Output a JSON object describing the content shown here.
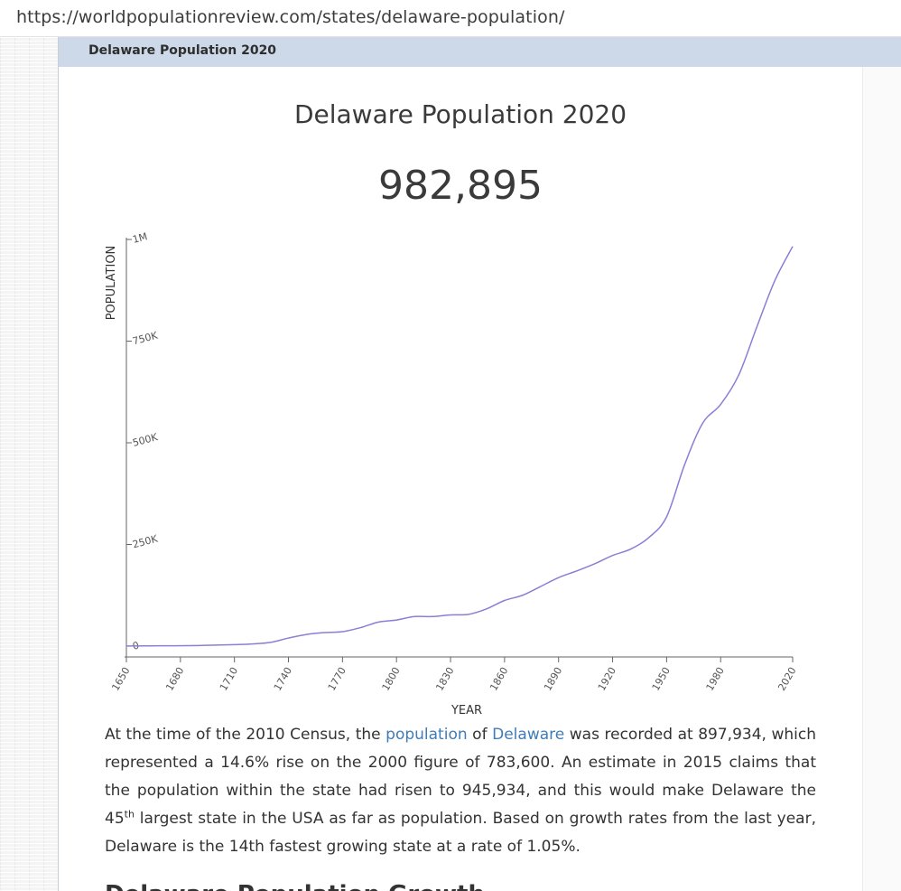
{
  "browser": {
    "url": "https://worldpopulationreview.com/states/delaware-population/"
  },
  "breadcrumb": {
    "label": "Delaware Population 2020"
  },
  "page": {
    "title": "Delaware Population 2020",
    "population": "982,895"
  },
  "chart_data": {
    "type": "line",
    "title": "",
    "xlabel": "YEAR",
    "ylabel": "POPULATION",
    "xlim": [
      1650,
      2020
    ],
    "ylim": [
      0,
      1000000
    ],
    "x_ticks": [
      "1650",
      "1680",
      "1710",
      "1740",
      "1770",
      "1800",
      "1830",
      "1860",
      "1890",
      "1920",
      "1950",
      "1980",
      "2020"
    ],
    "x_tick_values": [
      1650,
      1680,
      1710,
      1740,
      1770,
      1800,
      1830,
      1860,
      1890,
      1920,
      1950,
      1980,
      2020
    ],
    "y_ticks": [
      "0",
      "250K",
      "500K",
      "750K",
      "1M"
    ],
    "y_tick_values": [
      0,
      250000,
      500000,
      750000,
      1000000
    ],
    "grid": false,
    "color": "#8a7fd4",
    "series": [
      {
        "x": [
          1650,
          1670,
          1690,
          1700,
          1710,
          1720,
          1730,
          1740,
          1750,
          1760,
          1770,
          1780,
          1790,
          1800,
          1810,
          1820,
          1830,
          1840,
          1850,
          1860,
          1870,
          1880,
          1890,
          1900,
          1910,
          1920,
          1930,
          1940,
          1950,
          1960,
          1970,
          1980,
          1990,
          2000,
          2010,
          2020
        ],
        "y": [
          185,
          700,
          1500,
          2500,
          3645,
          5385,
          9170,
          19870,
          28704,
          33250,
          35496,
          45385,
          59096,
          64273,
          72674,
          72749,
          76748,
          78085,
          91532,
          112216,
          125015,
          146608,
          168493,
          184735,
          202322,
          223003,
          238380,
          266505,
          318085,
          446292,
          548104,
          594338,
          666168,
          783600,
          897934,
          982895
        ]
      }
    ]
  },
  "article": {
    "p1_a": "At the time of the 2010 Census, the ",
    "link_population": "population",
    "p1_b": " of ",
    "link_delaware": "Delaware",
    "p1_c": " was recorded at 897,934, which represented a 14.6% rise on the 2000 figure of 783,600. An estimate in 2015 claims that the population within the state had risen to 945,934, and this would make Delaware the 45",
    "sup": "th",
    "p1_d": " largest state in the USA as far as population. Based on growth rates from the last year, Delaware is the 14th fastest growing state at a rate of 1.05%.",
    "next_heading": "Delaware Population Growth"
  }
}
